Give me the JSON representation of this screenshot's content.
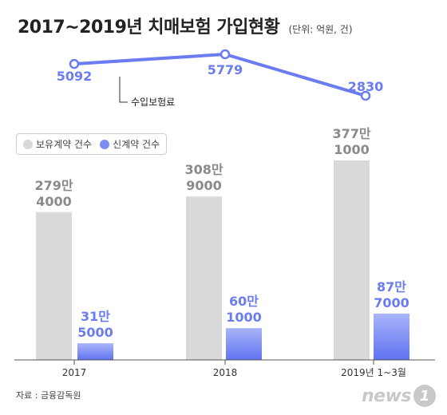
{
  "header": {
    "title": "2017~2019년 치매보험 가입현황",
    "unit": "(단위: 억원, 건)"
  },
  "legend": {
    "items": [
      {
        "label": "보유계약 건수",
        "color": "#d9d9d9"
      },
      {
        "label": "신계약 건수",
        "color": "#7b8cf5"
      }
    ]
  },
  "source": "자료 : 금융감독원",
  "logo": {
    "text": "news",
    "badge": "1"
  },
  "chart_data": {
    "type": "bar",
    "categories": [
      "2017",
      "2018",
      "2019년 1~3월"
    ],
    "series": [
      {
        "name": "보유계약 건수",
        "values": [
          2794000,
          3089000,
          3771000
        ],
        "labels": [
          [
            "279만",
            "4000"
          ],
          [
            "308만",
            "9000"
          ],
          [
            "377만",
            "1000"
          ]
        ],
        "color": "#d9d9d9"
      },
      {
        "name": "신계약 건수",
        "values": [
          315000,
          601000,
          877000
        ],
        "labels": [
          [
            "31만",
            "5000"
          ],
          [
            "60만",
            "1000"
          ],
          [
            "87만",
            "7000"
          ]
        ],
        "color": "#7b8cf5"
      }
    ],
    "line": {
      "name": "수입보험료",
      "values": [
        5092,
        5779,
        2830
      ],
      "labels": [
        "5092",
        "5779",
        "2830"
      ],
      "color": "#6a7cf0"
    }
  }
}
